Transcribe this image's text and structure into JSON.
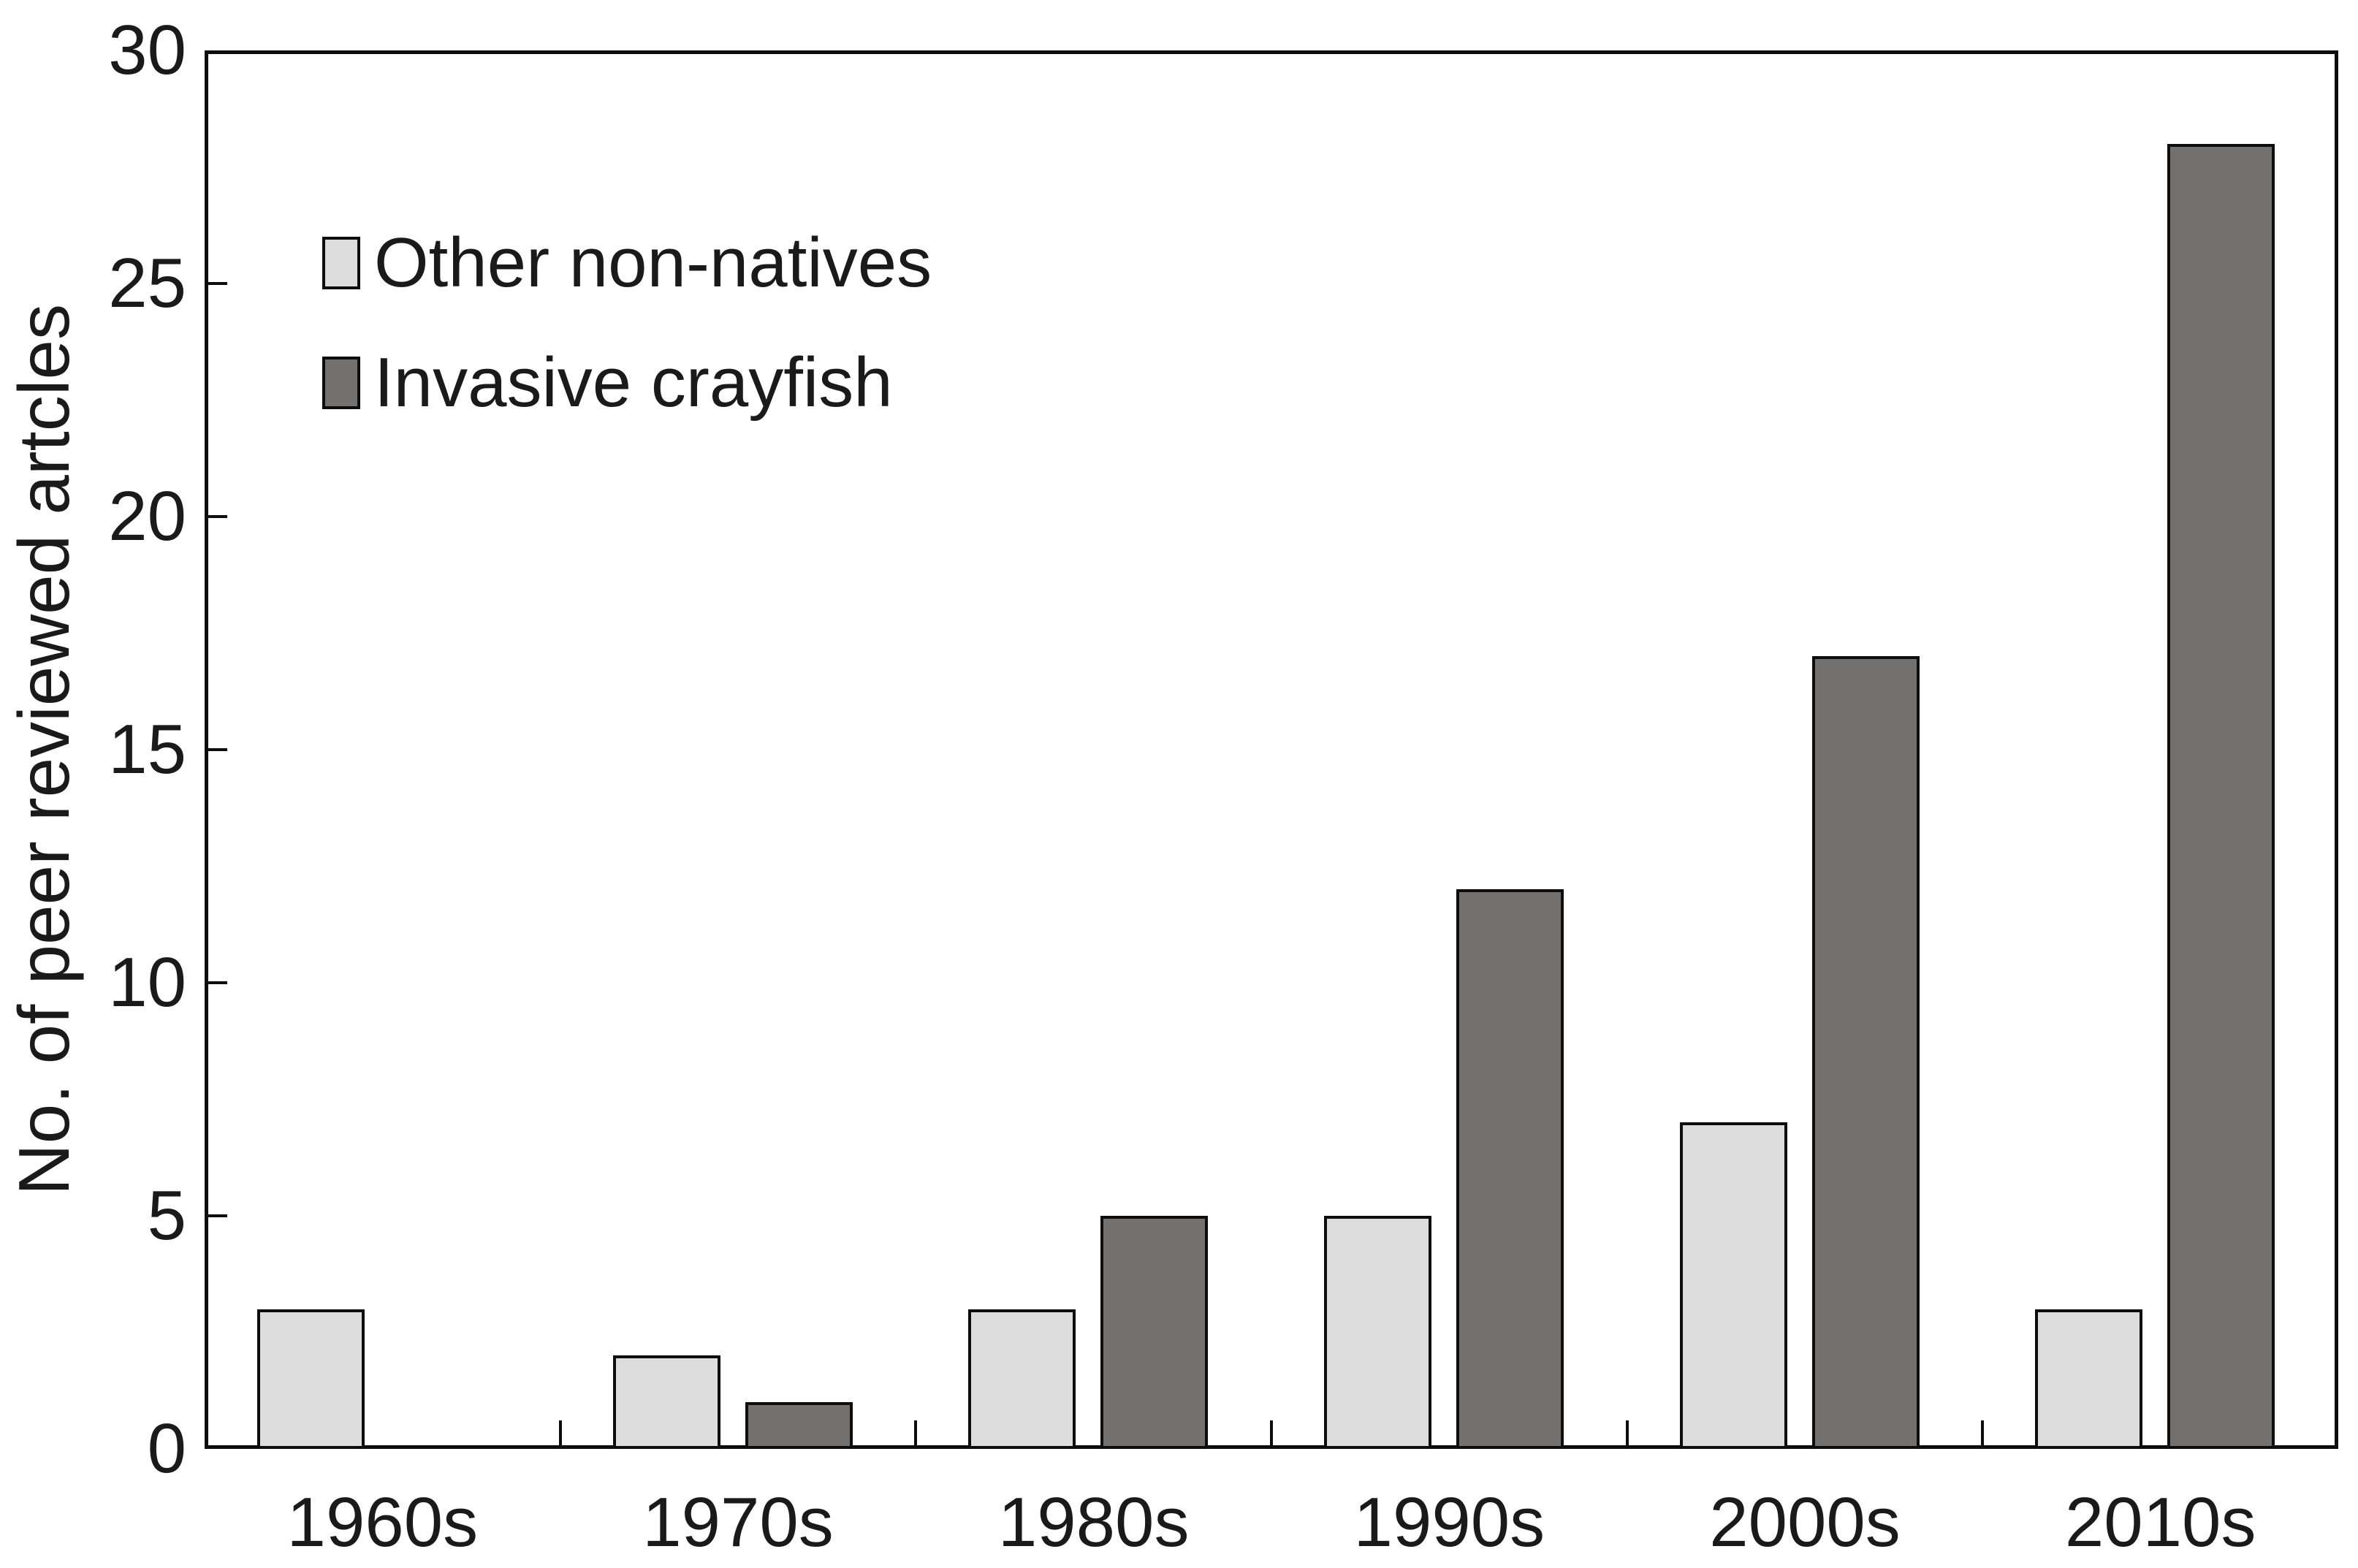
{
  "chart_data": {
    "type": "bar",
    "title": "",
    "xlabel": "",
    "ylabel": "No. of peer reviewed artcles",
    "categories": [
      "1960s",
      "1970s",
      "1980s",
      "1990s",
      "2000s",
      "2010s"
    ],
    "series": [
      {
        "name": "Other non-natives",
        "color": "#dcdcdc",
        "values": [
          3,
          2,
          3,
          5,
          7,
          3
        ]
      },
      {
        "name": "Invasive crayfish",
        "color": "#737170",
        "values": [
          0,
          1,
          5,
          12,
          17,
          28
        ]
      }
    ],
    "ylim": [
      0,
      30
    ],
    "yticks": [
      0,
      5,
      10,
      15,
      20,
      25,
      30
    ],
    "grid": false,
    "legend_position": "inside-top-left",
    "axis_color": "#0d0d0d",
    "text_color": "#1a1a1a",
    "background": "#ffffff"
  }
}
